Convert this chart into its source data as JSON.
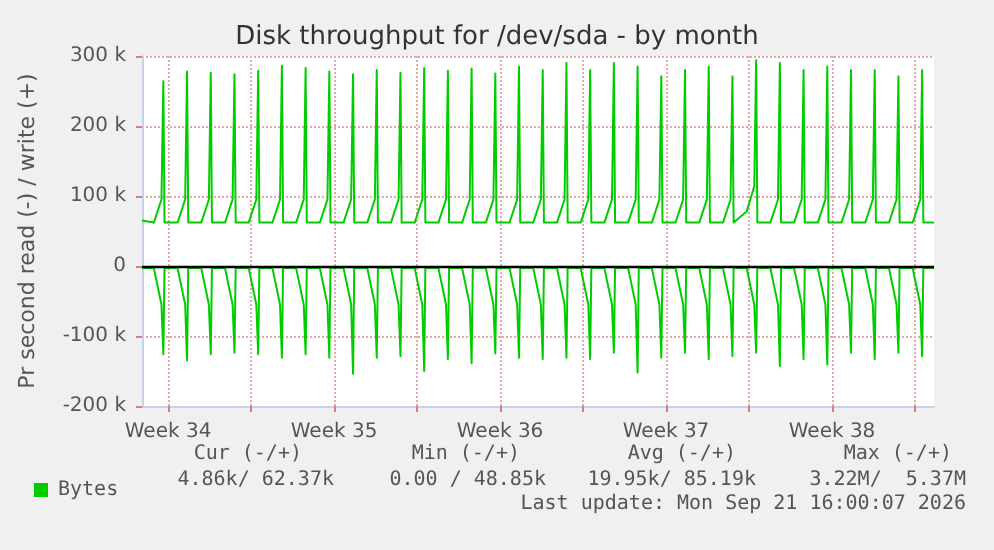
{
  "chart_data": {
    "type": "line",
    "title": "Disk throughput for /dev/sda - by month",
    "ylabel": "Pr second read (-) / write (+)",
    "x": [
      "2026-08-19T09:36",
      "2026-08-19T21:36",
      "2026-08-20T05:17",
      "2026-08-20T07:12",
      "2026-08-20T08:24",
      "2026-08-20T21:36",
      "2026-08-21T05:17",
      "2026-08-21T07:12",
      "2026-08-21T08:24",
      "2026-08-21T21:36",
      "2026-08-22T05:17",
      "2026-08-22T07:12",
      "2026-08-22T08:24",
      "2026-08-22T21:36",
      "2026-08-23T05:17",
      "2026-08-23T07:12",
      "2026-08-23T08:24",
      "2026-08-23T21:36",
      "2026-08-24T05:17",
      "2026-08-24T07:12",
      "2026-08-24T08:24",
      "2026-08-24T21:36",
      "2026-08-25T05:17",
      "2026-08-25T07:12",
      "2026-08-25T08:24",
      "2026-08-25T21:36",
      "2026-08-26T05:17",
      "2026-08-26T07:12",
      "2026-08-26T08:24",
      "2026-08-26T21:36",
      "2026-08-27T05:17",
      "2026-08-27T07:12",
      "2026-08-27T08:24",
      "2026-08-27T21:36",
      "2026-08-28T05:17",
      "2026-08-28T07:12",
      "2026-08-28T08:24",
      "2026-08-28T21:36",
      "2026-08-29T05:17",
      "2026-08-29T07:12",
      "2026-08-29T08:24",
      "2026-08-29T21:36",
      "2026-08-30T05:17",
      "2026-08-30T07:12",
      "2026-08-30T08:24",
      "2026-08-30T21:36",
      "2026-08-31T05:17",
      "2026-08-31T07:12",
      "2026-08-31T08:24",
      "2026-08-31T21:36",
      "2026-09-01T05:17",
      "2026-09-01T07:12",
      "2026-09-01T08:24",
      "2026-09-01T21:36",
      "2026-09-02T05:17",
      "2026-09-02T07:12",
      "2026-09-02T08:24",
      "2026-09-02T21:36",
      "2026-09-03T05:17",
      "2026-09-03T07:12",
      "2026-09-03T08:24",
      "2026-09-03T21:36",
      "2026-09-04T05:17",
      "2026-09-04T07:12",
      "2026-09-04T08:24",
      "2026-09-04T21:36",
      "2026-09-05T05:17",
      "2026-09-05T07:12",
      "2026-09-05T08:24",
      "2026-09-05T21:36",
      "2026-09-06T05:17",
      "2026-09-06T07:12",
      "2026-09-06T08:24",
      "2026-09-06T21:36",
      "2026-09-07T05:17",
      "2026-09-07T07:12",
      "2026-09-07T08:24",
      "2026-09-07T21:36",
      "2026-09-08T05:17",
      "2026-09-08T07:12",
      "2026-09-08T08:24",
      "2026-09-08T21:36",
      "2026-09-09T05:17",
      "2026-09-09T07:12",
      "2026-09-09T08:24",
      "2026-09-09T21:36",
      "2026-09-10T05:17",
      "2026-09-10T07:12",
      "2026-09-10T08:24",
      "2026-09-10T21:36",
      "2026-09-11T05:17",
      "2026-09-11T07:12",
      "2026-09-11T08:24",
      "2026-09-11T21:36",
      "2026-09-12T05:17",
      "2026-09-12T07:12",
      "2026-09-12T08:24",
      "2026-09-12T21:36",
      "2026-09-13T05:17",
      "2026-09-13T07:12",
      "2026-09-13T08:24",
      "2026-09-13T21:36",
      "2026-09-14T05:17",
      "2026-09-14T07:12",
      "2026-09-14T08:24",
      "2026-09-14T21:36",
      "2026-09-15T05:17",
      "2026-09-15T07:12",
      "2026-09-15T08:24",
      "2026-09-15T21:36",
      "2026-09-16T05:17",
      "2026-09-16T07:12",
      "2026-09-16T08:24",
      "2026-09-16T21:36",
      "2026-09-17T05:17",
      "2026-09-17T07:12",
      "2026-09-17T08:24",
      "2026-09-17T21:36",
      "2026-09-18T05:17",
      "2026-09-18T07:12",
      "2026-09-18T08:24",
      "2026-09-18T21:36",
      "2026-09-19T05:17",
      "2026-09-19T07:12",
      "2026-09-19T08:24",
      "2026-09-19T21:36",
      "2026-09-20T05:17",
      "2026-09-20T07:12",
      "2026-09-20T08:24",
      "2026-09-20T21:36",
      "2026-09-21T05:17",
      "2026-09-21T07:12",
      "2026-09-21T08:24",
      "2026-09-21T19:12"
    ],
    "series": [
      {
        "name": "Bytes",
        "color": "#00cc00",
        "values": [
          65000,
          62000,
          95000,
          264000,
          62000,
          62000,
          95000,
          278000,
          62000,
          62000,
          95000,
          276000,
          62000,
          62000,
          95000,
          274000,
          62000,
          62000,
          95000,
          279000,
          62000,
          62000,
          95000,
          286000,
          62000,
          62000,
          95000,
          283000,
          62000,
          62000,
          95000,
          278000,
          62000,
          62000,
          95000,
          274000,
          62000,
          62000,
          95000,
          280000,
          62000,
          62000,
          95000,
          276000,
          62000,
          62000,
          95000,
          283000,
          62000,
          62000,
          95000,
          279000,
          62000,
          62000,
          95000,
          282000,
          62000,
          62000,
          95000,
          275000,
          62000,
          62000,
          95000,
          285000,
          62000,
          62000,
          95000,
          280000,
          62000,
          62000,
          95000,
          290000,
          62000,
          62000,
          95000,
          280000,
          62000,
          62000,
          95000,
          290000,
          62000,
          62000,
          95000,
          285000,
          62000,
          62000,
          95000,
          271000,
          62000,
          62000,
          95000,
          280000,
          62000,
          62000,
          95000,
          285000,
          62000,
          62000,
          95000,
          271000,
          62000,
          78000,
          114000,
          294000,
          62000,
          62000,
          95000,
          290000,
          62000,
          62000,
          95000,
          280000,
          62000,
          62000,
          95000,
          285000,
          62000,
          62000,
          95000,
          280000,
          62000,
          62000,
          95000,
          280000,
          62000,
          62000,
          95000,
          271000,
          62000,
          62000,
          95000,
          280000,
          62000,
          62000
        ]
      },
      {
        "color": "#00cc00",
        "values": [
          -3000,
          -3000,
          -55000,
          -126000,
          -3000,
          -3000,
          -55000,
          -135000,
          -3000,
          -3000,
          -55000,
          -126000,
          -3000,
          -3000,
          -55000,
          -124000,
          -3000,
          -3000,
          -55000,
          -126000,
          -3000,
          -3000,
          -55000,
          -131000,
          -3000,
          -3000,
          -55000,
          -126000,
          -3000,
          -3000,
          -55000,
          -131000,
          -3000,
          -3000,
          -55000,
          -154000,
          -3000,
          -3000,
          -55000,
          -131000,
          -3000,
          -3000,
          -55000,
          -129000,
          -3000,
          -3000,
          -55000,
          -150000,
          -3000,
          -3000,
          -55000,
          -133000,
          -3000,
          -3000,
          -55000,
          -139000,
          -3000,
          -3000,
          -55000,
          -125000,
          -3000,
          -3000,
          -55000,
          -131000,
          -3000,
          -3000,
          -55000,
          -133000,
          -3000,
          -3000,
          -55000,
          -131000,
          -3000,
          -3000,
          -55000,
          -133000,
          -3000,
          -3000,
          -55000,
          -124000,
          -3000,
          -3000,
          -55000,
          -152000,
          -3000,
          -3000,
          -55000,
          -131000,
          -3000,
          -3000,
          -55000,
          -124000,
          -3000,
          -3000,
          -55000,
          -133000,
          -3000,
          -3000,
          -55000,
          -129000,
          -3000,
          -3000,
          -55000,
          -124000,
          -3000,
          -3000,
          -55000,
          -143000,
          -3000,
          -3000,
          -55000,
          -133000,
          -3000,
          -3000,
          -55000,
          -141000,
          -3000,
          -3000,
          -55000,
          -124000,
          -3000,
          -3000,
          -55000,
          -133000,
          -3000,
          -3000,
          -55000,
          -124000,
          -3000,
          -3000,
          -55000,
          -129000,
          -3000,
          -3000
        ]
      }
    ],
    "xlim": [
      "2026-08-19T09:36",
      "2026-09-21T19:12"
    ],
    "xticks": [
      {
        "value": "2026-08-20T12:00",
        "label": "Week 34"
      },
      {
        "value": "2026-08-24",
        "label": null
      },
      {
        "value": "2026-08-27T12:00",
        "label": "Week 35"
      },
      {
        "value": "2026-08-31",
        "label": null
      },
      {
        "value": "2026-09-03T12:00",
        "label": "Week 36"
      },
      {
        "value": "2026-09-07",
        "label": null
      },
      {
        "value": "2026-09-10T12:00",
        "label": "Week 37"
      },
      {
        "value": "2026-09-14",
        "label": null
      },
      {
        "value": "2026-09-17T12:00",
        "label": "Week 38"
      },
      {
        "value": "2026-09-21",
        "label": null
      }
    ],
    "ylim": [
      -200000,
      300000
    ],
    "yticks": [
      {
        "value": -200000,
        "label": "-200 k"
      },
      {
        "value": -100000,
        "label": "-100 k"
      },
      0,
      {
        "value": 100000,
        "label": "100 k"
      },
      {
        "value": 200000,
        "label": "200 k"
      },
      {
        "value": 300000,
        "label": "300 k"
      }
    ],
    "ref_lines": [
      {
        "axis": "y",
        "value": 0,
        "color": "#000000"
      }
    ],
    "grid": true,
    "legend": "bottom left",
    "marker": "none",
    "line_style": "solid",
    "annotations": [
      "Cur (-/+)",
      "Min (-/+)",
      "Avg (-/+)",
      "Max (-/+)",
      "4.86k/ 62.37k",
      "0.00 / 48.85k",
      "19.95k/ 85.19k",
      "3.22M/  5.37M",
      "Last update: Mon Sep 21 16:00:07 2026"
    ]
  }
}
